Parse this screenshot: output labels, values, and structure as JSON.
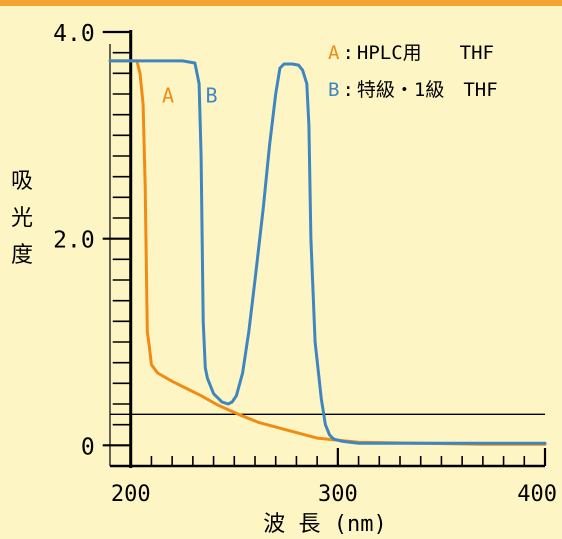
{
  "chart_data": {
    "type": "line",
    "xlabel": "波 長 (nm)",
    "ylabel_chars": [
      "吸",
      "光",
      "度"
    ],
    "xlim": [
      190,
      400
    ],
    "ylim": [
      -0.2,
      4.0
    ],
    "x_ticks": [
      200,
      300,
      400
    ],
    "x_tick_labels": [
      "200",
      "300",
      "400"
    ],
    "y_ticks": [
      0,
      2.0,
      4.0
    ],
    "y_tick_labels": [
      "0",
      "2.0",
      "4.0"
    ],
    "x_minor_step": 10,
    "y_minor_step": 0.2,
    "reference_line": {
      "x_start": 190,
      "y": 0.3
    },
    "legend": [
      {
        "key": "A",
        "sep": ":",
        "text": "HPLC用　　THF",
        "color": "#f08c14"
      },
      {
        "key": "B",
        "sep": ":",
        "text": "特級・1級　THF",
        "color": "#3f86c0"
      }
    ],
    "series": [
      {
        "name": "A",
        "color": "#f08c14",
        "x": [
          190,
          203,
          204.5,
          206,
          207,
          208,
          209,
          210,
          213,
          220,
          227,
          234,
          242,
          252,
          262,
          275,
          290,
          310,
          340,
          370,
          400
        ],
        "y": [
          3.72,
          3.72,
          3.6,
          3.3,
          2.5,
          1.1,
          0.95,
          0.78,
          0.7,
          0.62,
          0.55,
          0.48,
          0.39,
          0.3,
          0.22,
          0.15,
          0.07,
          0.03,
          0.02,
          0.01,
          0.01
        ]
      },
      {
        "name": "B",
        "color": "#3f86c0",
        "x": [
          190,
          210,
          225,
          231,
          233,
          234,
          235,
          236,
          237,
          240,
          244,
          247,
          249,
          251,
          254,
          257,
          260,
          264,
          267,
          270,
          272,
          274,
          278,
          281,
          283,
          285,
          286,
          287,
          289,
          292,
          294,
          296,
          298,
          302,
          310,
          340,
          400
        ],
        "y": [
          3.72,
          3.72,
          3.72,
          3.7,
          3.5,
          2.8,
          1.2,
          0.75,
          0.65,
          0.5,
          0.42,
          0.4,
          0.42,
          0.48,
          0.7,
          1.1,
          1.6,
          2.3,
          2.9,
          3.4,
          3.65,
          3.69,
          3.69,
          3.68,
          3.63,
          3.5,
          3.1,
          2.0,
          1.0,
          0.45,
          0.2,
          0.1,
          0.06,
          0.04,
          0.02,
          0.02,
          0.02
        ]
      }
    ],
    "curve_labels": [
      {
        "text": "A",
        "x": 218,
        "y": 3.32
      },
      {
        "text": "B",
        "x": 239,
        "y": 3.32
      }
    ]
  }
}
